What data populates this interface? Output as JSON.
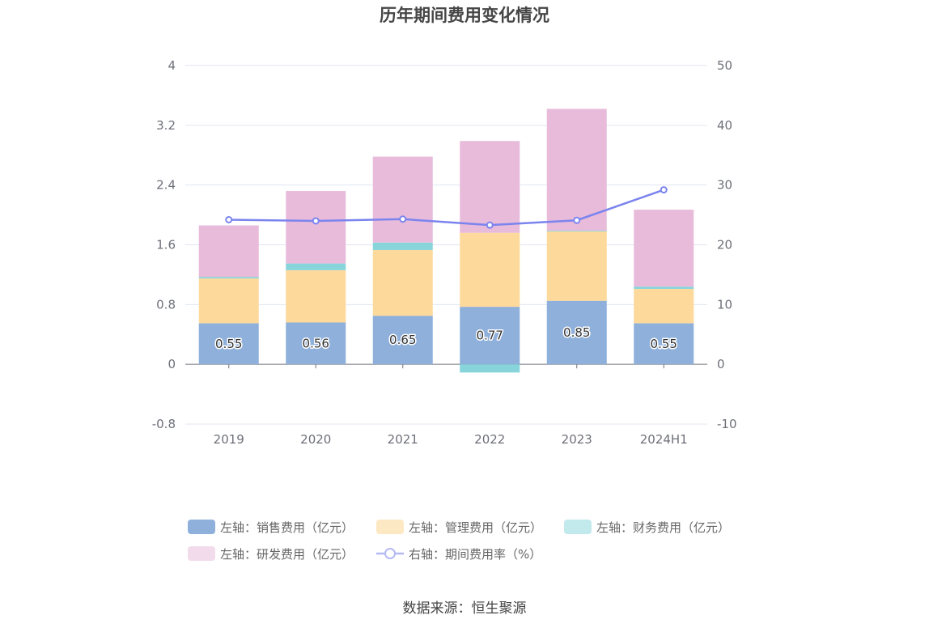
{
  "chart_data": {
    "type": "bar",
    "title": "历年期间费用变化情况",
    "categories": [
      "2019",
      "2020",
      "2021",
      "2022",
      "2023",
      "2024H1"
    ],
    "stacked": true,
    "series": [
      {
        "name": "左轴：销售费用（亿元）",
        "type": "bar",
        "axis": "left",
        "color": "#8eb0db",
        "values": [
          0.55,
          0.56,
          0.65,
          0.77,
          0.85,
          0.55
        ],
        "labels": [
          "0.55",
          "0.56",
          "0.65",
          "0.77",
          "0.85",
          "0.55"
        ]
      },
      {
        "name": "左轴：管理费用（亿元）",
        "type": "bar",
        "axis": "left",
        "color": "#fdd99b",
        "values": [
          0.6,
          0.7,
          0.88,
          0.99,
          0.93,
          0.46
        ]
      },
      {
        "name": "左轴：财务费用（亿元）",
        "type": "bar",
        "axis": "left",
        "color": "#87d4db",
        "values": [
          0.02,
          0.09,
          0.1,
          -0.11,
          0.01,
          0.03
        ]
      },
      {
        "name": "左轴：研发费用（亿元）",
        "type": "bar",
        "axis": "left",
        "color": "#e8bbdb",
        "values": [
          0.69,
          0.97,
          1.15,
          1.23,
          1.63,
          1.03
        ]
      },
      {
        "name": "右轴：期间费用率（%）",
        "type": "line",
        "axis": "right",
        "color": "#7b84ee",
        "values": [
          24.2,
          24.0,
          24.3,
          23.3,
          24.1,
          29.2
        ]
      }
    ],
    "left_axis": {
      "min": -0.8,
      "max": 4,
      "ticks": [
        "-0.8",
        "0",
        "0.8",
        "1.6",
        "2.4",
        "3.2",
        "4"
      ]
    },
    "right_axis": {
      "min": -10,
      "max": 50,
      "ticks": [
        "-10",
        "0",
        "10",
        "20",
        "30",
        "40",
        "50"
      ]
    },
    "grid": true,
    "legend_position": "bottom"
  },
  "source": "数据来源：恒生聚源"
}
